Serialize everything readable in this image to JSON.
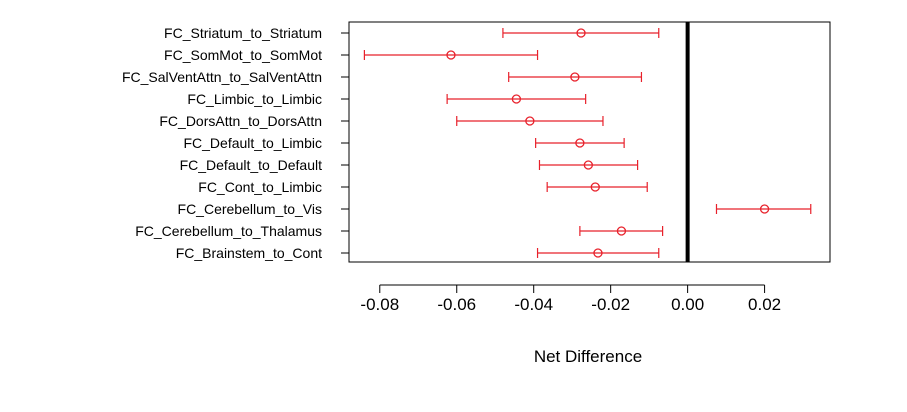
{
  "chart_data": {
    "type": "scatter",
    "subtype": "forest-plot-with-error-bars",
    "title": "",
    "xlabel": "Net Difference",
    "ylabel": "",
    "xlim": [
      -0.088,
      0.037
    ],
    "xticks": [
      -0.08,
      -0.06,
      -0.04,
      -0.02,
      0.0,
      0.02
    ],
    "xtick_labels": [
      "-0.08",
      "-0.06",
      "-0.04",
      "-0.02",
      "0.00",
      "0.02"
    ],
    "reference_line_x": 0.0,
    "grid": false,
    "legend": "none",
    "colors": {
      "points": "#e8212b",
      "reference_line": "#000000",
      "axis": "#000000"
    },
    "categories": [
      "FC_Striatum_to_Striatum",
      "FC_SomMot_to_SomMot",
      "FC_SalVentAttn_to_SalVentAttn",
      "FC_Limbic_to_Limbic",
      "FC_DorsAttn_to_DorsAttn",
      "FC_Default_to_Limbic",
      "FC_Default_to_Default",
      "FC_Cont_to_Limbic",
      "FC_Cerebellum_to_Vis",
      "FC_Cerebellum_to_Thalamus",
      "FC_Brainstem_to_Cont"
    ],
    "estimates": [
      -0.0277,
      -0.0615,
      -0.0293,
      -0.0445,
      -0.041,
      -0.028,
      -0.0258,
      -0.024,
      0.02,
      -0.0172,
      -0.0233
    ],
    "ci_lower": [
      -0.048,
      -0.084,
      -0.0465,
      -0.0625,
      -0.06,
      -0.0395,
      -0.0385,
      -0.0365,
      0.0075,
      -0.028,
      -0.039
    ],
    "ci_upper": [
      -0.0075,
      -0.039,
      -0.012,
      -0.0265,
      -0.022,
      -0.0165,
      -0.013,
      -0.0105,
      0.032,
      -0.0065,
      -0.0075
    ]
  }
}
